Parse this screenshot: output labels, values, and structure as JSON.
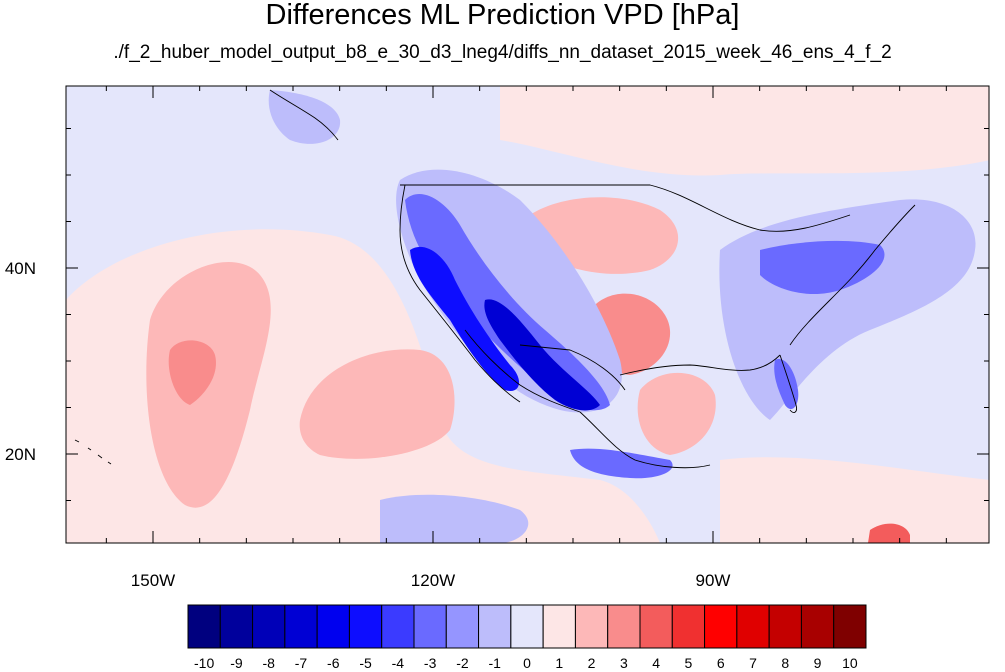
{
  "title": "Differences ML Prediction VPD [hPa]",
  "subtitle": "./f_2_huber_model_output_b8_e_30_d3_lneg4/diffs_nn_dataset_2015_week_46_ens_4_f_2",
  "map": {
    "lon_ticks": [
      {
        "value": -150,
        "label": "150W"
      },
      {
        "value": -120,
        "label": "120W"
      },
      {
        "value": -90,
        "label": "90W"
      }
    ],
    "lat_ticks": [
      {
        "value": 40,
        "label": "40N"
      },
      {
        "value": 20,
        "label": "20N"
      }
    ],
    "background_color": "#e4e6fb"
  },
  "colorbar": {
    "labels": [
      "-10",
      "-9",
      "-8",
      "-7",
      "-6",
      "-5",
      "-4",
      "-3",
      "-2",
      "-1",
      "0",
      "1",
      "2",
      "3",
      "4",
      "5",
      "6",
      "7",
      "8",
      "9",
      "10"
    ],
    "colors": [
      "#00007f",
      "#00009c",
      "#0000b8",
      "#0000d4",
      "#0000ef",
      "#0d0dff",
      "#3b3bff",
      "#6a6aff",
      "#9595ff",
      "#bdbdfb",
      "#e4e6fb",
      "#fde6e6",
      "#fdb8b8",
      "#f98c8c",
      "#f35c5c",
      "#f03030",
      "#ff0000",
      "#e00000",
      "#c40000",
      "#a80000",
      "#7f0000"
    ]
  }
}
